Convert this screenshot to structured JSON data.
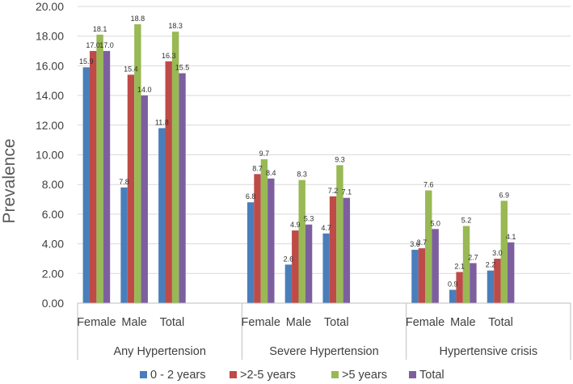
{
  "chart_data": {
    "type": "bar",
    "ylabel": "Prevalence",
    "ylim": [
      0,
      20
    ],
    "yticks": [
      "0.00",
      "2.00",
      "4.00",
      "6.00",
      "8.00",
      "10.00",
      "12.00",
      "14.00",
      "16.00",
      "18.00",
      "20.00"
    ],
    "groups": [
      {
        "name": "Any Hypertension",
        "categories": [
          "Female",
          "Male",
          "Total"
        ]
      },
      {
        "name": "Severe Hypertension",
        "categories": [
          "Female",
          "Male",
          "Total"
        ]
      },
      {
        "name": "Hypertensive crisis",
        "categories": [
          "Female",
          "Male",
          "Total"
        ]
      }
    ],
    "series": [
      {
        "name": "0 - 2  years",
        "color": "#4a7ebb",
        "values": [
          15.9,
          7.8,
          11.8,
          6.8,
          2.6,
          4.7,
          3.6,
          0.9,
          2.2
        ]
      },
      {
        "name": ">2-5 years",
        "color": "#be4b48",
        "values": [
          17.0,
          15.4,
          16.3,
          8.7,
          4.9,
          7.2,
          3.7,
          2.1,
          3.0
        ]
      },
      {
        "name": ">5 years",
        "color": "#98b954",
        "values": [
          18.1,
          18.8,
          18.3,
          9.7,
          8.3,
          9.3,
          7.6,
          5.2,
          6.9
        ]
      },
      {
        "name": "Total",
        "color": "#7d5fa0",
        "values": [
          17.0,
          14.0,
          15.5,
          8.4,
          5.3,
          7.1,
          5.0,
          2.7,
          4.1
        ]
      }
    ]
  }
}
